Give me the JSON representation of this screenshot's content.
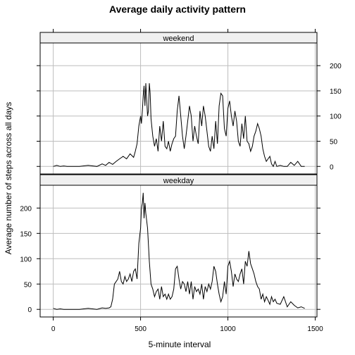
{
  "chart_data": {
    "type": "line",
    "title": "Average daily activity pattern",
    "xlabel": "5-minute interval",
    "ylabel": "Average number of steps across all days",
    "xlim": [
      -75,
      1510
    ],
    "ylim": [
      -15,
      245
    ],
    "x_ticks": [
      0,
      500,
      1000,
      1500
    ],
    "y_ticks": [
      0,
      50,
      100,
      150,
      200
    ],
    "grid": true,
    "panels": [
      {
        "label": "weekend",
        "series": {
          "x": [
            0,
            20,
            40,
            60,
            80,
            100,
            150,
            200,
            250,
            280,
            300,
            320,
            340,
            360,
            380,
            400,
            420,
            440,
            460,
            470,
            480,
            490,
            500,
            505,
            510,
            515,
            520,
            525,
            530,
            540,
            545,
            550,
            555,
            560,
            570,
            580,
            590,
            600,
            610,
            620,
            630,
            640,
            650,
            660,
            670,
            680,
            690,
            700,
            710,
            720,
            730,
            740,
            750,
            760,
            770,
            780,
            790,
            800,
            810,
            820,
            830,
            840,
            850,
            860,
            870,
            880,
            890,
            900,
            910,
            920,
            930,
            940,
            950,
            960,
            970,
            980,
            990,
            1000,
            1010,
            1020,
            1030,
            1040,
            1050,
            1060,
            1070,
            1080,
            1090,
            1100,
            1110,
            1120,
            1130,
            1140,
            1150,
            1160,
            1170,
            1180,
            1190,
            1200,
            1210,
            1220,
            1230,
            1240,
            1250,
            1260,
            1270,
            1280,
            1300,
            1320,
            1340,
            1360,
            1380,
            1400,
            1420,
            1440
          ],
          "y": [
            0,
            2,
            0,
            1,
            0,
            0,
            0,
            2,
            0,
            5,
            2,
            8,
            4,
            10,
            15,
            20,
            15,
            25,
            18,
            30,
            45,
            80,
            100,
            85,
            110,
            140,
            160,
            120,
            165,
            100,
            110,
            165,
            145,
            95,
            60,
            40,
            55,
            30,
            80,
            50,
            90,
            40,
            35,
            50,
            30,
            45,
            55,
            60,
            110,
            140,
            100,
            60,
            35,
            60,
            90,
            120,
            100,
            50,
            80,
            60,
            45,
            110,
            80,
            120,
            100,
            70,
            40,
            30,
            60,
            35,
            90,
            45,
            120,
            145,
            140,
            75,
            60,
            115,
            130,
            100,
            80,
            110,
            90,
            50,
            40,
            85,
            55,
            100,
            50,
            45,
            30,
            40,
            60,
            70,
            85,
            75,
            60,
            35,
            20,
            10,
            15,
            20,
            5,
            0,
            10,
            0,
            2,
            0,
            0,
            8,
            2,
            10,
            0,
            0
          ]
        }
      },
      {
        "label": "weekday",
        "series": {
          "x": [
            0,
            20,
            40,
            60,
            80,
            100,
            150,
            200,
            250,
            280,
            300,
            320,
            330,
            340,
            350,
            360,
            370,
            380,
            390,
            400,
            410,
            420,
            430,
            440,
            450,
            460,
            470,
            480,
            490,
            500,
            505,
            510,
            515,
            520,
            525,
            530,
            540,
            550,
            560,
            570,
            580,
            590,
            600,
            610,
            620,
            630,
            640,
            650,
            660,
            670,
            680,
            690,
            700,
            710,
            720,
            730,
            740,
            750,
            760,
            770,
            780,
            790,
            800,
            810,
            820,
            830,
            840,
            850,
            860,
            870,
            880,
            890,
            900,
            910,
            920,
            930,
            940,
            950,
            960,
            970,
            980,
            990,
            1000,
            1010,
            1020,
            1030,
            1040,
            1050,
            1060,
            1070,
            1080,
            1090,
            1100,
            1110,
            1115,
            1120,
            1130,
            1140,
            1150,
            1160,
            1170,
            1180,
            1190,
            1200,
            1210,
            1220,
            1230,
            1240,
            1250,
            1260,
            1270,
            1280,
            1300,
            1320,
            1340,
            1360,
            1380,
            1400,
            1420,
            1440
          ],
          "y": [
            2,
            0,
            1,
            0,
            0,
            0,
            0,
            2,
            0,
            3,
            2,
            3,
            5,
            20,
            50,
            55,
            60,
            75,
            55,
            50,
            65,
            55,
            60,
            70,
            55,
            75,
            80,
            60,
            130,
            160,
            200,
            210,
            230,
            180,
            210,
            190,
            160,
            95,
            50,
            40,
            25,
            35,
            40,
            20,
            45,
            25,
            30,
            20,
            30,
            20,
            25,
            40,
            80,
            85,
            60,
            40,
            55,
            50,
            35,
            55,
            30,
            55,
            20,
            45,
            35,
            40,
            30,
            50,
            20,
            45,
            35,
            50,
            40,
            55,
            85,
            75,
            50,
            30,
            15,
            25,
            55,
            30,
            85,
            95,
            75,
            45,
            70,
            60,
            55,
            70,
            80,
            50,
            95,
            85,
            100,
            115,
            90,
            80,
            70,
            55,
            45,
            40,
            20,
            30,
            15,
            25,
            18,
            10,
            25,
            15,
            20,
            12,
            10,
            25,
            5,
            15,
            8,
            3,
            5,
            2
          ]
        }
      }
    ]
  }
}
